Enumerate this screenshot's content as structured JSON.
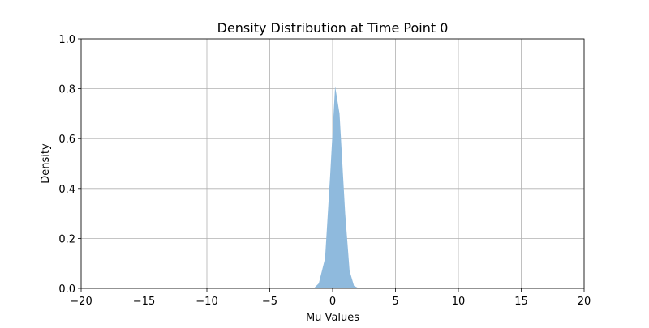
{
  "chart_data": {
    "type": "area",
    "title": "Density Distribution at Time Point 0",
    "xlabel": "Mu Values",
    "ylabel": "Density",
    "xlim": [
      -20,
      20
    ],
    "ylim": [
      0,
      1.0
    ],
    "xticks": [
      -20,
      -15,
      -10,
      -5,
      0,
      5,
      10,
      15,
      20
    ],
    "xtick_labels": [
      "−20",
      "−15",
      "−10",
      "−5",
      "0",
      "5",
      "10",
      "15",
      "20"
    ],
    "yticks": [
      0.0,
      0.2,
      0.4,
      0.6,
      0.8,
      1.0
    ],
    "ytick_labels": [
      "0.0",
      "0.2",
      "0.4",
      "0.6",
      "0.8",
      "1.0"
    ],
    "grid": true,
    "fill_color": "#8fbadd",
    "series": [
      {
        "x": [
          -1.5,
          -1.1,
          -0.6,
          -0.2,
          0.2,
          0.55,
          1.0,
          1.35,
          1.7,
          2.1
        ],
        "y": [
          0.0,
          0.02,
          0.12,
          0.45,
          0.81,
          0.7,
          0.3,
          0.07,
          0.01,
          0.0
        ]
      }
    ]
  }
}
